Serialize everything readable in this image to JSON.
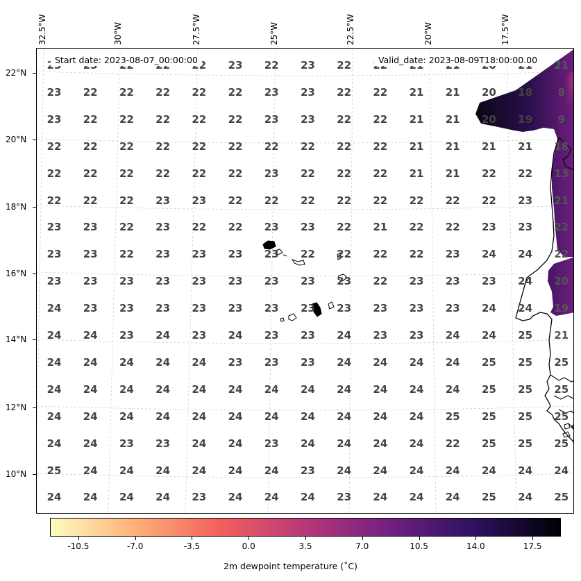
{
  "map": {
    "region": "Eastern tropical Atlantic, Cape Verde Islands and West African coast",
    "start_date": "Start date: 2023-08-07_00:00:00",
    "valid_date": "Valid_date: 2023-08-09T18:00:00.00",
    "gridlines": true,
    "coastline_color": "#000000",
    "value_label_color": "#444444"
  },
  "lon_labels": [
    "32.5°W",
    "30°W",
    "27.5°W",
    "25°W",
    "22.5°W",
    "20°W",
    "17.5°W"
  ],
  "lat_labels": [
    "22°N",
    "20°N",
    "18°N",
    "16°N",
    "14°N",
    "12°N",
    "10°N"
  ],
  "grid_values": [
    [
      "23",
      "23",
      "22",
      "22",
      "22",
      "23",
      "22",
      "23",
      "22",
      "22",
      "21",
      "21",
      "20",
      "21",
      "21"
    ],
    [
      "23",
      "22",
      "22",
      "22",
      "22",
      "22",
      "23",
      "23",
      "22",
      "22",
      "21",
      "21",
      "20",
      "18",
      "8"
    ],
    [
      "23",
      "22",
      "22",
      "22",
      "22",
      "22",
      "23",
      "23",
      "22",
      "22",
      "21",
      "21",
      "20",
      "19",
      "9"
    ],
    [
      "22",
      "22",
      "22",
      "22",
      "22",
      "22",
      "22",
      "22",
      "22",
      "22",
      "21",
      "21",
      "21",
      "21",
      "18"
    ],
    [
      "22",
      "22",
      "22",
      "22",
      "22",
      "22",
      "23",
      "22",
      "22",
      "22",
      "21",
      "21",
      "22",
      "22",
      "13"
    ],
    [
      "22",
      "22",
      "22",
      "23",
      "23",
      "22",
      "22",
      "22",
      "22",
      "22",
      "22",
      "22",
      "22",
      "23",
      "21"
    ],
    [
      "23",
      "23",
      "22",
      "23",
      "22",
      "22",
      "23",
      "23",
      "22",
      "21",
      "22",
      "22",
      "23",
      "23",
      "22"
    ],
    [
      "23",
      "23",
      "22",
      "23",
      "23",
      "23",
      "23",
      "22",
      "22",
      "22",
      "22",
      "23",
      "24",
      "24",
      "22"
    ],
    [
      "23",
      "23",
      "23",
      "23",
      "23",
      "23",
      "23",
      "23",
      "23",
      "22",
      "23",
      "23",
      "23",
      "24",
      "20"
    ],
    [
      "24",
      "23",
      "23",
      "23",
      "23",
      "23",
      "23",
      "23",
      "23",
      "23",
      "23",
      "23",
      "24",
      "24",
      "19"
    ],
    [
      "24",
      "24",
      "23",
      "24",
      "23",
      "24",
      "23",
      "23",
      "24",
      "23",
      "23",
      "24",
      "24",
      "25",
      "21"
    ],
    [
      "24",
      "24",
      "24",
      "24",
      "24",
      "23",
      "23",
      "23",
      "24",
      "24",
      "24",
      "24",
      "25",
      "25",
      "25"
    ],
    [
      "24",
      "24",
      "24",
      "24",
      "24",
      "24",
      "24",
      "24",
      "24",
      "24",
      "24",
      "24",
      "25",
      "25",
      "25"
    ],
    [
      "24",
      "24",
      "24",
      "24",
      "24",
      "24",
      "24",
      "24",
      "24",
      "24",
      "24",
      "25",
      "25",
      "25",
      "25"
    ],
    [
      "24",
      "24",
      "23",
      "23",
      "24",
      "24",
      "23",
      "24",
      "24",
      "24",
      "24",
      "22",
      "25",
      "25",
      "25"
    ],
    [
      "25",
      "24",
      "24",
      "24",
      "24",
      "24",
      "24",
      "23",
      "24",
      "24",
      "24",
      "24",
      "24",
      "24",
      "24"
    ],
    [
      "24",
      "24",
      "24",
      "24",
      "23",
      "24",
      "24",
      "24",
      "23",
      "24",
      "24",
      "24",
      "25",
      "24",
      "25"
    ]
  ],
  "colorbar": {
    "label": "2m dewpoint temperature ($^\\circ$C)",
    "label_display": "2m dewpoint temperature (˚C)",
    "min": -12.25,
    "max": 19.25,
    "ticks": [
      "-10.5",
      "-7.0",
      "-3.5",
      "0.0",
      "3.5",
      "7.0",
      "10.5",
      "14.0",
      "17.5"
    ],
    "tick_values": [
      -10.5,
      -7.0,
      -3.5,
      0.0,
      3.5,
      7.0,
      10.5,
      14.0,
      17.5
    ],
    "colormap": "magma_r",
    "stops": [
      "#fcfdbf",
      "#feb078",
      "#f1605d",
      "#b73779",
      "#721f81",
      "#2c115f",
      "#000004"
    ]
  }
}
